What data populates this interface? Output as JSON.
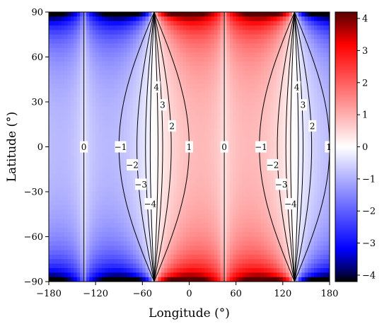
{
  "chart_data": {
    "type": "heatmap",
    "title": "",
    "xlabel": "Longitude (°)",
    "ylabel": "Latitude (°)",
    "xlim": [
      -180,
      180
    ],
    "ylim": [
      -90,
      90
    ],
    "x_ticks": [
      "−180",
      "−120",
      "−60",
      "0",
      "60",
      "120",
      "180"
    ],
    "y_ticks": [
      "90",
      "60",
      "30",
      "0",
      "−30",
      "−60",
      "−90"
    ],
    "colorbar": {
      "range": [
        -4.2,
        4.2
      ],
      "ticks": [
        "4",
        "3",
        "2",
        "1",
        "0",
        "−1",
        "−2",
        "−3",
        "−4"
      ],
      "colors": {
        "lowest": "#000000",
        "low": "#0000ff",
        "mid": "#ffffff",
        "high": "#ff0000",
        "highest": "#5a0000"
      }
    },
    "contour_levels": [
      -4,
      -3,
      -2,
      -1,
      0,
      1,
      2,
      3,
      4
    ],
    "contour_labels": [
      {
        "text": "4",
        "lon": -42,
        "lat": 40
      },
      {
        "text": "3",
        "lon": -34,
        "lat": 28
      },
      {
        "text": "2",
        "lon": -22,
        "lat": 14
      },
      {
        "text": "1",
        "lon": 0,
        "lat": 0
      },
      {
        "text": "0",
        "lon": -135,
        "lat": 0
      },
      {
        "text": "−1",
        "lon": -88,
        "lat": 0
      },
      {
        "text": "−2",
        "lon": -73,
        "lat": -12
      },
      {
        "text": "−3",
        "lon": -62,
        "lat": -25
      },
      {
        "text": "−4",
        "lon": -50,
        "lat": -38
      },
      {
        "text": "4",
        "lon": 138,
        "lat": 40
      },
      {
        "text": "3",
        "lon": 146,
        "lat": 28
      },
      {
        "text": "2",
        "lon": 158,
        "lat": 14
      },
      {
        "text": "1",
        "lon": 179,
        "lat": 0
      },
      {
        "text": "0",
        "lon": 45,
        "lat": 0
      },
      {
        "text": "−1",
        "lon": 92,
        "lat": 0
      },
      {
        "text": "−2",
        "lon": 107,
        "lat": -12
      },
      {
        "text": "−3",
        "lon": 118,
        "lat": -25
      },
      {
        "text": "−4",
        "lon": 130,
        "lat": -38
      }
    ]
  }
}
